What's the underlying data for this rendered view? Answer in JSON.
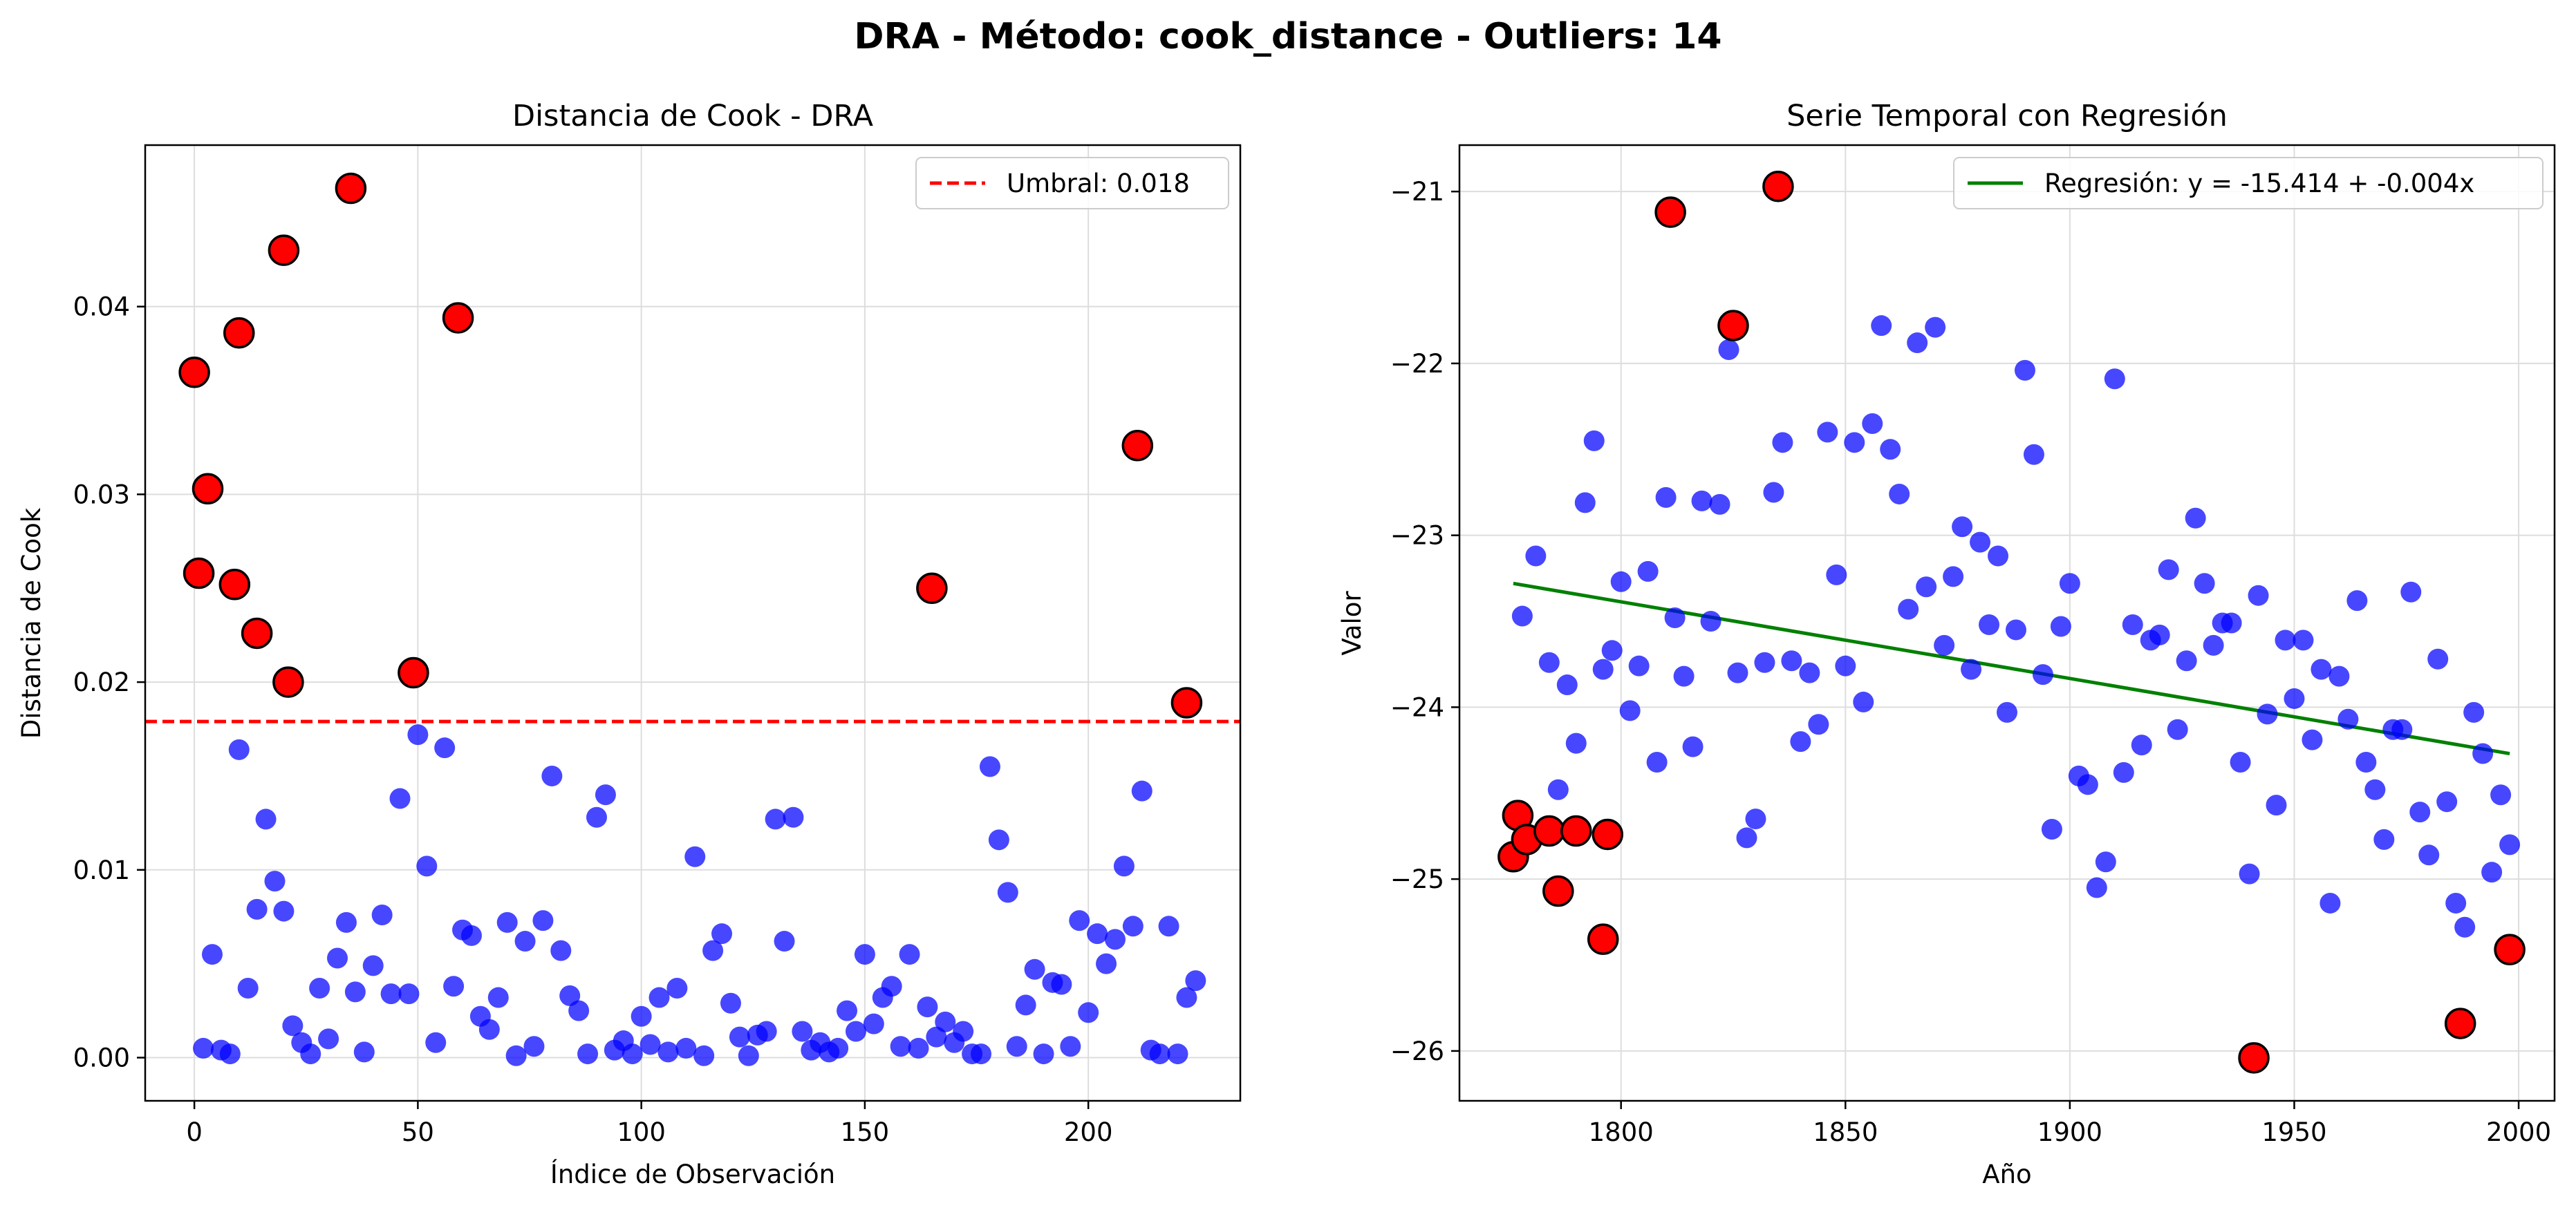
{
  "figure": {
    "suptitle": "DRA  - Método: cook_distance - Outliers: 14"
  },
  "chart_data": [
    {
      "type": "scatter",
      "title": "Distancia de Cook - DRA",
      "xlabel": "Índice de Observación",
      "ylabel": "Distancia de Cook",
      "xlim": [
        -11,
        234
      ],
      "ylim": [
        -0.0023,
        0.0486
      ],
      "xticks": [
        0,
        50,
        100,
        150,
        200
      ],
      "yticks": [
        0.0,
        0.01,
        0.02,
        0.03,
        0.04
      ],
      "ytick_labels": [
        "0.00",
        "0.01",
        "0.02",
        "0.03",
        "0.04"
      ],
      "grid": true,
      "legend_position": "upper right",
      "threshold": {
        "label": "Umbral: 0.018",
        "value": 0.0179,
        "color": "#ff0000"
      },
      "series": [
        {
          "name": "",
          "color": "#0000ff",
          "x": [
            2,
            4,
            6,
            8,
            10,
            12,
            14,
            16,
            18,
            20,
            22,
            24,
            26,
            28,
            30,
            32,
            34,
            36,
            38,
            40,
            42,
            44,
            46,
            48,
            50,
            52,
            54,
            56,
            58,
            60,
            62,
            64,
            66,
            68,
            70,
            72,
            74,
            76,
            78,
            80,
            82,
            84,
            86,
            88,
            90,
            92,
            94,
            96,
            98,
            100,
            102,
            104,
            106,
            108,
            110,
            112,
            114,
            116,
            118,
            120,
            122,
            124,
            126,
            128,
            130,
            132,
            134,
            136,
            138,
            140,
            142,
            144,
            146,
            148,
            150,
            152,
            154,
            156,
            158,
            160,
            162,
            164,
            166,
            168,
            170,
            172,
            174,
            176,
            178,
            180,
            182,
            184,
            186,
            188,
            190,
            192,
            194,
            196,
            198,
            200,
            202,
            204,
            206,
            208,
            210,
            212,
            214,
            216,
            218,
            220,
            222,
            224
          ],
          "y": [
            0.0005,
            0.0055,
            0.0004,
            0.0002,
            0.0164,
            0.0037,
            0.0079,
            0.0127,
            0.0094,
            0.0078,
            0.0017,
            0.0008,
            0.0002,
            0.0037,
            0.001,
            0.0053,
            0.0072,
            0.0035,
            0.0003,
            0.0049,
            0.0076,
            0.0034,
            0.0138,
            0.0034,
            0.0172,
            0.0102,
            0.0008,
            0.0165,
            0.0038,
            0.0068,
            0.0065,
            0.0022,
            0.0015,
            0.0032,
            0.0072,
            0.0001,
            0.0062,
            0.0006,
            0.0073,
            0.015,
            0.0057,
            0.0033,
            0.0025,
            0.0002,
            0.0128,
            0.014,
            0.0004,
            0.0009,
            0.0002,
            0.0022,
            0.0007,
            0.0032,
            0.0003,
            0.0037,
            0.0005,
            0.0107,
            0.0001,
            0.0057,
            0.0066,
            0.0029,
            0.0011,
            0.0001,
            0.0012,
            0.0014,
            0.0127,
            0.0062,
            0.0128,
            0.0014,
            0.0004,
            0.0008,
            0.0003,
            0.0005,
            0.0025,
            0.0014,
            0.0055,
            0.0018,
            0.0032,
            0.0038,
            0.0006,
            0.0055,
            0.0005,
            0.0027,
            0.0011,
            0.0019,
            0.0008,
            0.0014,
            0.0002,
            0.0002,
            0.0155,
            0.0116,
            0.0088,
            0.0006,
            0.0028,
            0.0047,
            0.0002,
            0.004,
            0.0039,
            0.0006,
            0.0073,
            0.0024,
            0.0066,
            0.005,
            0.0063,
            0.0102,
            0.007,
            0.0142,
            0.0004,
            0.0002,
            0.007,
            0.0002,
            0.0032,
            0.0041
          ]
        },
        {
          "name": "",
          "color": "#ff0000",
          "x": [
            0,
            1,
            3,
            9,
            10,
            14,
            20,
            21,
            35,
            49,
            59,
            165,
            211,
            222
          ],
          "y": [
            0.0365,
            0.0258,
            0.0303,
            0.0252,
            0.0386,
            0.0226,
            0.043,
            0.02,
            0.0463,
            0.0205,
            0.0394,
            0.025,
            0.0326,
            0.0189
          ]
        }
      ]
    },
    {
      "type": "scatter",
      "title": "Serie Temporal con Regresión",
      "xlabel": "Año",
      "ylabel": "Valor",
      "xlim": [
        1764,
        2008
      ],
      "ylim": [
        -26.29,
        -20.73
      ],
      "xticks": [
        1800,
        1850,
        1900,
        1950,
        2000
      ],
      "yticks": [
        -26,
        -25,
        -24,
        -23,
        -22,
        -21
      ],
      "ytick_labels": [
        "−26",
        "−25",
        "−24",
        "−23",
        "−22",
        "−21"
      ],
      "grid": true,
      "legend_position": "upper right",
      "regression": {
        "label": "Regresión: y = -15.414 + -0.004x",
        "color": "#008000",
        "x": [
          1776,
          1998
        ],
        "y": [
          -23.28,
          -24.27
        ]
      },
      "series": [
        {
          "name": "",
          "color": "#0000ff",
          "x": [
            1778,
            1781,
            1784,
            1786,
            1788,
            1790,
            1792,
            1794,
            1796,
            1798,
            1800,
            1802,
            1804,
            1806,
            1808,
            1810,
            1812,
            1814,
            1816,
            1818,
            1820,
            1822,
            1824,
            1826,
            1828,
            1830,
            1832,
            1834,
            1836,
            1838,
            1840,
            1842,
            1844,
            1846,
            1848,
            1850,
            1852,
            1854,
            1856,
            1858,
            1860,
            1862,
            1864,
            1866,
            1868,
            1870,
            1872,
            1874,
            1876,
            1878,
            1880,
            1882,
            1884,
            1886,
            1888,
            1890,
            1892,
            1894,
            1896,
            1898,
            1900,
            1902,
            1904,
            1906,
            1908,
            1910,
            1912,
            1914,
            1916,
            1918,
            1920,
            1922,
            1924,
            1926,
            1928,
            1930,
            1932,
            1934,
            1936,
            1938,
            1940,
            1942,
            1944,
            1946,
            1948,
            1950,
            1952,
            1954,
            1956,
            1958,
            1960,
            1962,
            1964,
            1966,
            1968,
            1970,
            1972,
            1974,
            1976,
            1978,
            1980,
            1982,
            1984,
            1986,
            1988,
            1990,
            1992,
            1994,
            1996,
            1998
          ],
          "y": [
            -23.47,
            -23.12,
            -23.74,
            -24.48,
            -23.87,
            -24.21,
            -22.81,
            -22.45,
            -23.78,
            -23.67,
            -23.27,
            -24.02,
            -23.76,
            -23.21,
            -24.32,
            -22.78,
            -23.48,
            -23.82,
            -24.23,
            -22.8,
            -23.5,
            -22.82,
            -21.92,
            -23.8,
            -24.76,
            -24.65,
            -23.74,
            -22.75,
            -22.46,
            -23.73,
            -24.2,
            -23.8,
            -24.1,
            -22.4,
            -23.23,
            -23.76,
            -22.46,
            -23.97,
            -22.35,
            -21.78,
            -22.5,
            -22.76,
            -23.43,
            -21.88,
            -23.3,
            -21.79,
            -23.64,
            -23.24,
            -22.95,
            -23.78,
            -23.04,
            -23.52,
            -23.12,
            -24.03,
            -23.55,
            -22.04,
            -22.53,
            -23.81,
            -24.71,
            -23.53,
            -23.28,
            -24.4,
            -24.45,
            -25.05,
            -24.9,
            -22.09,
            -24.38,
            -23.52,
            -24.22,
            -23.61,
            -23.58,
            -23.2,
            -24.13,
            -23.73,
            -22.9,
            -23.28,
            -23.64,
            -23.51,
            -23.51,
            -24.32,
            -24.97,
            -23.35,
            -24.04,
            -24.57,
            -23.61,
            -23.95,
            -23.61,
            -24.19,
            -23.78,
            -25.14,
            -23.82,
            -24.07,
            -23.38,
            -24.32,
            -24.48,
            -24.77,
            -24.13,
            -24.13,
            -23.33,
            -24.61,
            -24.86,
            -23.72,
            -24.55,
            -25.14,
            -25.28,
            -24.03,
            -24.27,
            -24.96,
            -24.51,
            -24.8
          ]
        },
        {
          "name": "",
          "color": "#ff0000",
          "x": [
            1776,
            1777,
            1779,
            1784,
            1786,
            1790,
            1796,
            1797,
            1811,
            1825,
            1835,
            1941,
            1987,
            1998
          ],
          "y": [
            -24.87,
            -24.63,
            -24.77,
            -24.72,
            -25.07,
            -24.72,
            -25.35,
            -24.74,
            -21.12,
            -21.78,
            -20.97,
            -26.04,
            -25.84,
            -25.41
          ]
        }
      ]
    }
  ]
}
